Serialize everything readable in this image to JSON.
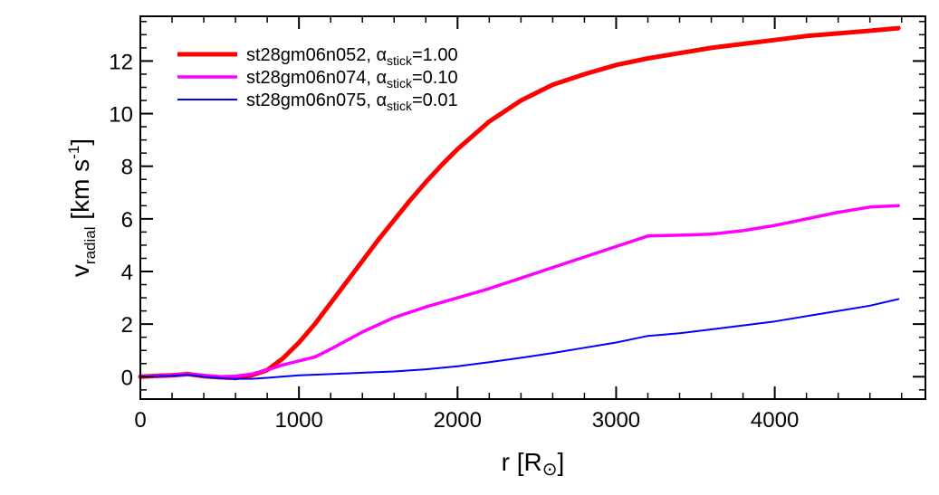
{
  "chart_data": {
    "type": "line",
    "title": "",
    "xlabel": {
      "main": "r [R",
      "symbol": "⊙",
      "close": "]"
    },
    "ylabel": {
      "main": "v",
      "sub": "radial",
      "unit": " [km s",
      "sup": "-1",
      "close": "]"
    },
    "xlim": [
      0,
      4950
    ],
    "ylim": [
      -0.85,
      13.7
    ],
    "x_ticks": [
      0,
      1000,
      2000,
      3000,
      4000
    ],
    "x_tick_labels": [
      "0",
      "1000",
      "2000",
      "3000",
      "4000"
    ],
    "y_ticks": [
      0,
      2,
      4,
      6,
      8,
      10,
      12
    ],
    "y_tick_labels": [
      "0",
      "2",
      "4",
      "6",
      "8",
      "10",
      "12"
    ],
    "grid": false,
    "legend_position": "top-left",
    "series": [
      {
        "name": "st28gm06n052, α",
        "name_sub": "stick",
        "name_tail": "=1.00",
        "color": "#ff0000",
        "x": [
          0,
          100,
          200,
          300,
          400,
          500,
          600,
          700,
          800,
          900,
          1000,
          1100,
          1200,
          1300,
          1400,
          1500,
          1600,
          1700,
          1800,
          1900,
          2000,
          2200,
          2400,
          2600,
          2800,
          3000,
          3200,
          3400,
          3600,
          3800,
          4000,
          4200,
          4400,
          4600,
          4780
        ],
        "y": [
          0.0,
          0.03,
          0.05,
          0.1,
          0.02,
          -0.02,
          -0.05,
          0.05,
          0.25,
          0.7,
          1.3,
          2.0,
          2.8,
          3.6,
          4.4,
          5.2,
          5.95,
          6.7,
          7.4,
          8.05,
          8.65,
          9.7,
          10.5,
          11.1,
          11.5,
          11.85,
          12.1,
          12.3,
          12.5,
          12.65,
          12.8,
          12.95,
          13.05,
          13.15,
          13.25
        ]
      },
      {
        "name": "st28gm06n074, α",
        "name_sub": "stick",
        "name_tail": "=0.10",
        "color": "#ff00ff",
        "x": [
          0,
          100,
          200,
          300,
          400,
          500,
          600,
          700,
          800,
          900,
          1000,
          1100,
          1200,
          1400,
          1600,
          1800,
          2000,
          2200,
          2400,
          2600,
          2800,
          3000,
          3200,
          3400,
          3600,
          3800,
          4000,
          4200,
          4400,
          4600,
          4780
        ],
        "y": [
          0.02,
          0.03,
          0.05,
          0.1,
          0.05,
          0.0,
          0.02,
          0.1,
          0.25,
          0.45,
          0.6,
          0.75,
          1.05,
          1.7,
          2.25,
          2.65,
          3.0,
          3.35,
          3.75,
          4.15,
          4.55,
          4.95,
          5.35,
          5.38,
          5.42,
          5.55,
          5.75,
          6.0,
          6.25,
          6.45,
          6.5
        ]
      },
      {
        "name": "st28gm06n075, α",
        "name_sub": "stick",
        "name_tail": "=0.01",
        "color": "#0000ff",
        "x": [
          0,
          100,
          200,
          300,
          400,
          500,
          600,
          700,
          800,
          1000,
          1200,
          1400,
          1600,
          1800,
          2000,
          2200,
          2400,
          2600,
          2800,
          3000,
          3200,
          3400,
          3600,
          3800,
          4000,
          4200,
          4400,
          4600,
          4780
        ],
        "y": [
          0.0,
          0.02,
          0.03,
          0.08,
          0.0,
          -0.05,
          -0.08,
          -0.08,
          -0.04,
          0.05,
          0.1,
          0.15,
          0.2,
          0.28,
          0.4,
          0.55,
          0.72,
          0.9,
          1.1,
          1.3,
          1.55,
          1.65,
          1.8,
          1.95,
          2.1,
          2.3,
          2.5,
          2.7,
          2.95
        ]
      }
    ]
  }
}
